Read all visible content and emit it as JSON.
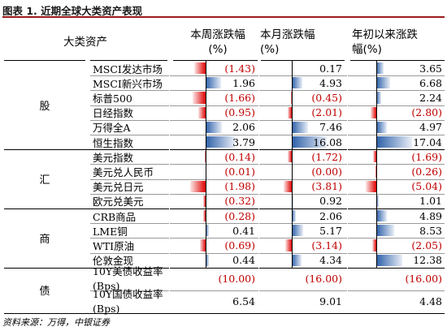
{
  "title": "图表 1. 近期全球大类资产表现",
  "headers": {
    "asset": "大类资产",
    "week": "本周涨跌幅\n(%)",
    "month": "本月涨跌幅\n(%)",
    "ytd": "年初以来涨跌\n幅(%)"
  },
  "groups": [
    "股",
    "汇",
    "商",
    "债"
  ],
  "rows": [
    {
      "name": "MSCI发达市场",
      "week": "(1.43)",
      "month": "0.17",
      "ytd": "3.65",
      "w": -1.43,
      "m": 0.17,
      "y": 3.65
    },
    {
      "name": "MSCI新兴市场",
      "week": "1.96",
      "month": "4.93",
      "ytd": "6.68",
      "w": 1.96,
      "m": 4.93,
      "y": 6.68
    },
    {
      "name": "标普500",
      "week": "(1.66)",
      "month": "(0.45)",
      "ytd": "2.24",
      "w": -1.66,
      "m": -0.45,
      "y": 2.24
    },
    {
      "name": "日经指数",
      "week": "(0.95)",
      "month": "(2.01)",
      "ytd": "(2.80)",
      "w": -0.95,
      "m": -2.01,
      "y": -2.8
    },
    {
      "name": "万得全A",
      "week": "2.06",
      "month": "7.46",
      "ytd": "4.97",
      "w": 2.06,
      "m": 7.46,
      "y": 4.97
    },
    {
      "name": "恒生指数",
      "week": "3.79",
      "month": "16.08",
      "ytd": "17.04",
      "w": 3.79,
      "m": 16.08,
      "y": 17.04
    },
    {
      "name": "美元指数",
      "week": "(0.14)",
      "month": "(1.72)",
      "ytd": "(1.69)",
      "w": -0.14,
      "m": -1.72,
      "y": -1.69
    },
    {
      "name": "美元兑人民币",
      "week": "(0.01)",
      "month": "(0.00)",
      "ytd": "(0.26)",
      "w": -0.01,
      "m": 0.0,
      "y": -0.26
    },
    {
      "name": "美元兑日元",
      "week": "(1.98)",
      "month": "(3.81)",
      "ytd": "(5.04)",
      "w": -1.98,
      "m": -3.81,
      "y": -5.04
    },
    {
      "name": "欧元兑美元",
      "week": "(0.32)",
      "month": "0.92",
      "ytd": "1.01",
      "w": -0.32,
      "m": 0.92,
      "y": 1.01
    },
    {
      "name": "CRB商品",
      "week": "(0.28)",
      "month": "2.06",
      "ytd": "4.89",
      "w": -0.28,
      "m": 2.06,
      "y": 4.89
    },
    {
      "name": "LME铜",
      "week": "0.41",
      "month": "5.17",
      "ytd": "8.53",
      "w": 0.41,
      "m": 5.17,
      "y": 8.53
    },
    {
      "name": "WTI原油",
      "week": "(0.69)",
      "month": "(3.14)",
      "ytd": "(2.05)",
      "w": -0.69,
      "m": -3.14,
      "y": -2.05
    },
    {
      "name": "伦敦金现",
      "week": "0.44",
      "month": "4.34",
      "ytd": "12.38",
      "w": 0.44,
      "m": 4.34,
      "y": 12.38
    }
  ],
  "bond_rows": [
    {
      "name": "10Y美债收益率\n(Bps)",
      "week": "(10.00)",
      "month": "(16.00)",
      "ytd": "(16.00)"
    },
    {
      "name": "10Y国债收益率\n(Bps)",
      "week": "6.54",
      "month": "9.01",
      "ytd": "4.48"
    }
  ],
  "footer": "资料来源：万得，中银证券"
}
